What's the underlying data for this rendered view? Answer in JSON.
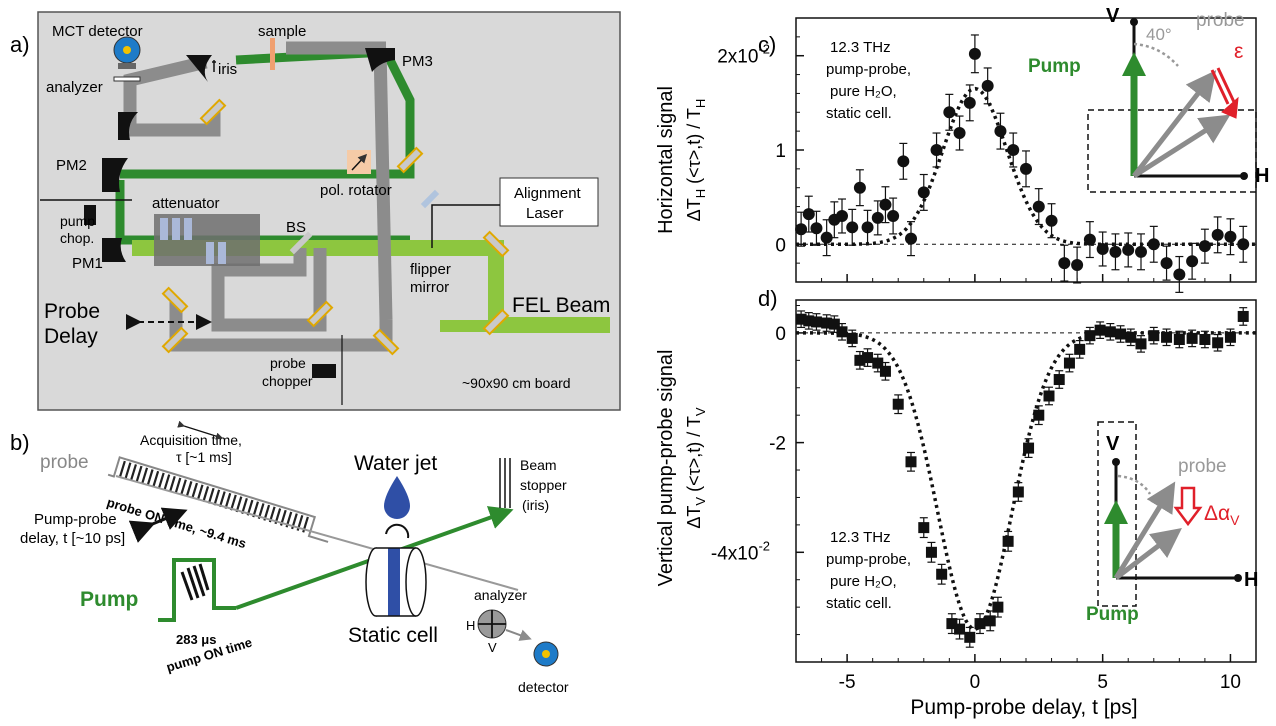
{
  "panel_labels": {
    "a": "a)",
    "b": "b)",
    "c": "c)",
    "d": "d)"
  },
  "setup": {
    "mct_detector": "MCT detector",
    "analyzer": "analyzer",
    "sample": "sample",
    "iris": "iris",
    "pm3": "PM3",
    "pm2": "PM2",
    "pm1": "PM1",
    "pol_rotator": "pol. rotator",
    "attenuator": "attenuator",
    "pump_chop_1": "pump",
    "pump_chop_2": "chop.",
    "bs": "BS",
    "alignment_1": "Alignment",
    "alignment_2": "Laser",
    "flipper_1": "flipper",
    "flipper_2": "mirror",
    "fel_beam": "FEL Beam",
    "probe_delay_1": "Probe",
    "probe_delay_2": "Delay",
    "probe_chopper_1": "probe",
    "probe_chopper_2": "chopper",
    "board": "~90x90 cm board"
  },
  "scheme": {
    "probe": "probe",
    "acq_1": "Acquisition time,",
    "acq_2": "τ [~1 ms]",
    "probe_on": "probe ON time, ~9.4 ms",
    "pp_delay_1": "Pump-probe",
    "pp_delay_2": "delay, t [~10 ps]",
    "pump": "Pump",
    "pump_on_1": "283 μs",
    "pump_on_2": "pump ON time",
    "water_jet": "Water jet",
    "static_cell": "Static cell",
    "beam_stopper_1": "Beam",
    "beam_stopper_2": "stopper",
    "beam_stopper_3": "(iris)",
    "analyzer": "analyzer",
    "h": "H",
    "v": "V",
    "detector": "detector"
  },
  "chart_data": [
    {
      "type": "scatter",
      "ylabel_1": "Horizontal signal",
      "ylabel_2": "ΔT",
      "ylabel_sub": "H",
      "ylabel_3": " (<τ>,t) / T",
      "ylabel_sub2": "H",
      "annotation": [
        "12.3 THz",
        "pump-probe,",
        "pure H₂O,",
        "static cell."
      ],
      "ytick_labels": [
        "0",
        "1",
        "2x10"
      ],
      "ytick_exp": "-2",
      "ylim": [
        -0.004,
        0.024
      ],
      "xlim": [
        -7,
        11
      ],
      "points": [
        {
          "x": -6.8,
          "y": 0.0016,
          "err": 0.0018
        },
        {
          "x": -6.5,
          "y": 0.0032,
          "err": 0.0019
        },
        {
          "x": -6.2,
          "y": 0.0017,
          "err": 0.0018
        },
        {
          "x": -5.8,
          "y": 0.0007,
          "err": 0.0019
        },
        {
          "x": -5.5,
          "y": 0.0026,
          "err": 0.0019
        },
        {
          "x": -5.2,
          "y": 0.003,
          "err": 0.0018
        },
        {
          "x": -4.8,
          "y": 0.0018,
          "err": 0.0019
        },
        {
          "x": -4.5,
          "y": 0.006,
          "err": 0.0019
        },
        {
          "x": -4.2,
          "y": 0.0018,
          "err": 0.0018
        },
        {
          "x": -3.8,
          "y": 0.0028,
          "err": 0.0018
        },
        {
          "x": -3.5,
          "y": 0.0042,
          "err": 0.0019
        },
        {
          "x": -3.2,
          "y": 0.003,
          "err": 0.0019
        },
        {
          "x": -2.8,
          "y": 0.0088,
          "err": 0.0019
        },
        {
          "x": -2.5,
          "y": 0.0006,
          "err": 0.0018
        },
        {
          "x": -2.0,
          "y": 0.0055,
          "err": 0.0019
        },
        {
          "x": -1.5,
          "y": 0.01,
          "err": 0.0018
        },
        {
          "x": -1.0,
          "y": 0.014,
          "err": 0.0019
        },
        {
          "x": -0.6,
          "y": 0.0118,
          "err": 0.0018
        },
        {
          "x": -0.2,
          "y": 0.015,
          "err": 0.0019
        },
        {
          "x": 0.0,
          "y": 0.0202,
          "err": 0.002
        },
        {
          "x": 0.5,
          "y": 0.0168,
          "err": 0.0019
        },
        {
          "x": 1.0,
          "y": 0.012,
          "err": 0.0019
        },
        {
          "x": 1.5,
          "y": 0.01,
          "err": 0.0018
        },
        {
          "x": 2.0,
          "y": 0.008,
          "err": 0.0019
        },
        {
          "x": 2.5,
          "y": 0.004,
          "err": 0.0019
        },
        {
          "x": 3.0,
          "y": 0.0025,
          "err": 0.0018
        },
        {
          "x": 3.5,
          "y": -0.002,
          "err": 0.0019
        },
        {
          "x": 4.0,
          "y": -0.0022,
          "err": 0.0019
        },
        {
          "x": 4.5,
          "y": 0.0005,
          "err": 0.0019
        },
        {
          "x": 5.0,
          "y": -0.0005,
          "err": 0.0018
        },
        {
          "x": 5.5,
          "y": -0.0008,
          "err": 0.0019
        },
        {
          "x": 6.0,
          "y": -0.0006,
          "err": 0.0018
        },
        {
          "x": 6.5,
          "y": -0.0008,
          "err": 0.0019
        },
        {
          "x": 7.0,
          "y": 0.0,
          "err": 0.0019
        },
        {
          "x": 7.5,
          "y": -0.002,
          "err": 0.0018
        },
        {
          "x": 8.0,
          "y": -0.0032,
          "err": 0.0019
        },
        {
          "x": 8.5,
          "y": -0.0018,
          "err": 0.0019
        },
        {
          "x": 9.0,
          "y": -0.0002,
          "err": 0.0018
        },
        {
          "x": 9.5,
          "y": 0.001,
          "err": 0.0019
        },
        {
          "x": 10.0,
          "y": 0.0008,
          "err": 0.0019
        },
        {
          "x": 10.5,
          "y": 0.0,
          "err": 0.0019
        }
      ],
      "fit": {
        "amplitude": 0.0165,
        "center": 0.0,
        "sigma": 1.25
      },
      "zero_line": true,
      "inset": {
        "v": "V",
        "h": "H",
        "angle": "40°",
        "probe": "probe",
        "epsilon": "ε",
        "pump": "Pump"
      }
    },
    {
      "type": "scatter",
      "ylabel_1": "Vertical pump-probe signal",
      "ylabel_2": "ΔT",
      "ylabel_sub": "V",
      "ylabel_3": " (<τ>,t) / T",
      "ylabel_sub2": "V",
      "xlabel": "Pump-probe delay, t [ps]",
      "annotation": [
        "12.3 THz",
        "pump-probe,",
        "pure H₂O,",
        "static cell."
      ],
      "xtick_labels": [
        "-5",
        "0",
        "5",
        "10"
      ],
      "xticks": [
        -5,
        0,
        5,
        10
      ],
      "ytick_labels": [
        "0",
        "-2",
        "-4x10"
      ],
      "ytick_exp": "-2",
      "ylim": [
        -0.06,
        0.006
      ],
      "xlim": [
        -7,
        11
      ],
      "points": [
        {
          "x": -6.8,
          "y": 0.0025,
          "err": 0.0015
        },
        {
          "x": -6.5,
          "y": 0.0022,
          "err": 0.0015
        },
        {
          "x": -6.2,
          "y": 0.002,
          "err": 0.0015
        },
        {
          "x": -5.8,
          "y": 0.0018,
          "err": 0.0015
        },
        {
          "x": -5.5,
          "y": 0.0016,
          "err": 0.0015
        },
        {
          "x": -5.2,
          "y": 0.0002,
          "err": 0.0015
        },
        {
          "x": -4.8,
          "y": -0.001,
          "err": 0.0015
        },
        {
          "x": -4.5,
          "y": -0.005,
          "err": 0.0016
        },
        {
          "x": -4.2,
          "y": -0.0045,
          "err": 0.0016
        },
        {
          "x": -3.8,
          "y": -0.0055,
          "err": 0.0016
        },
        {
          "x": -3.5,
          "y": -0.007,
          "err": 0.0016
        },
        {
          "x": -3.0,
          "y": -0.013,
          "err": 0.0017
        },
        {
          "x": -2.5,
          "y": -0.0235,
          "err": 0.0017
        },
        {
          "x": -2.0,
          "y": -0.0355,
          "err": 0.0018
        },
        {
          "x": -1.7,
          "y": -0.04,
          "err": 0.0018
        },
        {
          "x": -1.3,
          "y": -0.044,
          "err": 0.0018
        },
        {
          "x": -0.9,
          "y": -0.053,
          "err": 0.0018
        },
        {
          "x": -0.6,
          "y": -0.054,
          "err": 0.0018
        },
        {
          "x": -0.2,
          "y": -0.0555,
          "err": 0.0018
        },
        {
          "x": 0.2,
          "y": -0.053,
          "err": 0.0018
        },
        {
          "x": 0.6,
          "y": -0.0525,
          "err": 0.0018
        },
        {
          "x": 0.9,
          "y": -0.05,
          "err": 0.0018
        },
        {
          "x": 1.3,
          "y": -0.038,
          "err": 0.0018
        },
        {
          "x": 1.7,
          "y": -0.029,
          "err": 0.0017
        },
        {
          "x": 2.1,
          "y": -0.021,
          "err": 0.0017
        },
        {
          "x": 2.5,
          "y": -0.015,
          "err": 0.0017
        },
        {
          "x": 2.9,
          "y": -0.0115,
          "err": 0.0016
        },
        {
          "x": 3.3,
          "y": -0.0085,
          "err": 0.0016
        },
        {
          "x": 3.7,
          "y": -0.0055,
          "err": 0.0016
        },
        {
          "x": 4.1,
          "y": -0.003,
          "err": 0.0016
        },
        {
          "x": 4.5,
          "y": -0.0005,
          "err": 0.0015
        },
        {
          "x": 4.9,
          "y": 0.0005,
          "err": 0.0015
        },
        {
          "x": 5.3,
          "y": 0.0002,
          "err": 0.0015
        },
        {
          "x": 5.7,
          "y": -0.0002,
          "err": 0.0015
        },
        {
          "x": 6.1,
          "y": -0.0008,
          "err": 0.0015
        },
        {
          "x": 6.5,
          "y": -0.002,
          "err": 0.0015
        },
        {
          "x": 7.0,
          "y": -0.0005,
          "err": 0.0015
        },
        {
          "x": 7.5,
          "y": -0.0008,
          "err": 0.0015
        },
        {
          "x": 8.0,
          "y": -0.0012,
          "err": 0.0015
        },
        {
          "x": 8.5,
          "y": -0.001,
          "err": 0.0015
        },
        {
          "x": 9.0,
          "y": -0.0012,
          "err": 0.0015
        },
        {
          "x": 9.5,
          "y": -0.0018,
          "err": 0.0015
        },
        {
          "x": 10.0,
          "y": -0.0008,
          "err": 0.0015
        },
        {
          "x": 10.5,
          "y": 0.003,
          "err": 0.0016
        }
      ],
      "fit": {
        "amplitude": -0.054,
        "center": 0.0,
        "sigma": 1.45
      },
      "zero_line": true,
      "inset": {
        "v": "V",
        "h": "H",
        "probe": "probe",
        "delta_alpha": "Δα",
        "delta_alpha_sub": "V",
        "pump": "Pump"
      }
    }
  ],
  "colors": {
    "green": "#2e8b2e",
    "light_green": "#8dc63f",
    "gray_beam": "#8c8c8c",
    "red": "#e0202a",
    "water": "#3a56a8"
  }
}
